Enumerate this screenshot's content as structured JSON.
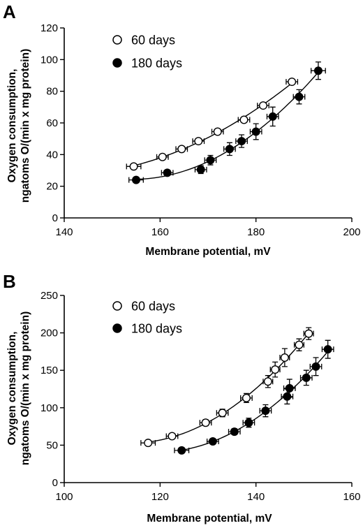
{
  "chart_data": [
    {
      "type": "scatter",
      "panel": "A",
      "xlabel": "Membrane potential, mV",
      "ylabel_lines": [
        "Oxygen consumption,",
        "ngatoms O/(min x mg protein)"
      ],
      "xlim": [
        140,
        200
      ],
      "ylim": [
        0,
        120
      ],
      "xticks": [
        140,
        160,
        180,
        200
      ],
      "yticks": [
        0,
        20,
        40,
        60,
        80,
        100,
        120
      ],
      "legend_position": "top-left",
      "series": [
        {
          "name": "60 days",
          "marker": "open-circle",
          "points": [
            {
              "x": 154.5,
              "y": 32.5,
              "xerr": 1.5,
              "yerr": 1.5
            },
            {
              "x": 160.5,
              "y": 38.5,
              "xerr": 1.2,
              "yerr": 1.5
            },
            {
              "x": 164.5,
              "y": 43.5,
              "xerr": 1.2,
              "yerr": 1.5
            },
            {
              "x": 168,
              "y": 48.5,
              "xerr": 1.2,
              "yerr": 1.5
            },
            {
              "x": 172,
              "y": 54.5,
              "xerr": 1.2,
              "yerr": 1.5
            },
            {
              "x": 177.5,
              "y": 62,
              "xerr": 1.2,
              "yerr": 1.5
            },
            {
              "x": 181.5,
              "y": 71,
              "xerr": 1.2,
              "yerr": 1.5
            },
            {
              "x": 187.5,
              "y": 86,
              "xerr": 1.2,
              "yerr": 1.5
            }
          ]
        },
        {
          "name": "180 days",
          "marker": "filled-circle",
          "points": [
            {
              "x": 155,
              "y": 24,
              "xerr": 1.5,
              "yerr": 1.5
            },
            {
              "x": 161.5,
              "y": 28.5,
              "xerr": 1.2,
              "yerr": 1.5
            },
            {
              "x": 168.5,
              "y": 30.5,
              "xerr": 1.2,
              "yerr": 2.5
            },
            {
              "x": 170.5,
              "y": 36.5,
              "xerr": 1.2,
              "yerr": 3
            },
            {
              "x": 174.5,
              "y": 43.5,
              "xerr": 1.2,
              "yerr": 4
            },
            {
              "x": 177,
              "y": 48.5,
              "xerr": 1.2,
              "yerr": 4
            },
            {
              "x": 180,
              "y": 54.5,
              "xerr": 1.2,
              "yerr": 5
            },
            {
              "x": 183.5,
              "y": 64,
              "xerr": 1.2,
              "yerr": 6
            },
            {
              "x": 189,
              "y": 76.5,
              "xerr": 1.2,
              "yerr": 4.5
            },
            {
              "x": 193,
              "y": 93,
              "xerr": 1.5,
              "yerr": 5.5
            }
          ]
        }
      ]
    },
    {
      "type": "scatter",
      "panel": "B",
      "xlabel": "Membrane potential, mV",
      "ylabel_lines": [
        "Oxygen consumption,",
        "ngatoms O/(min x mg protein)"
      ],
      "xlim": [
        100,
        160
      ],
      "ylim": [
        0,
        250
      ],
      "xticks": [
        100,
        120,
        140,
        160
      ],
      "yticks": [
        0,
        50,
        100,
        150,
        200,
        250
      ],
      "legend_position": "top-left",
      "series": [
        {
          "name": "60 days",
          "marker": "open-circle",
          "points": [
            {
              "x": 117.5,
              "y": 53,
              "xerr": 1.5,
              "yerr": 3
            },
            {
              "x": 122.5,
              "y": 62,
              "xerr": 1.2,
              "yerr": 3
            },
            {
              "x": 129.5,
              "y": 80,
              "xerr": 1.2,
              "yerr": 4
            },
            {
              "x": 133,
              "y": 93,
              "xerr": 1.2,
              "yerr": 5
            },
            {
              "x": 138,
              "y": 113,
              "xerr": 1.2,
              "yerr": 6
            },
            {
              "x": 142.5,
              "y": 135,
              "xerr": 1,
              "yerr": 8
            },
            {
              "x": 144,
              "y": 151,
              "xerr": 1,
              "yerr": 10
            },
            {
              "x": 146,
              "y": 167,
              "xerr": 1,
              "yerr": 12
            },
            {
              "x": 149,
              "y": 184,
              "xerr": 1,
              "yerr": 8
            },
            {
              "x": 151,
              "y": 199,
              "xerr": 1,
              "yerr": 8
            }
          ]
        },
        {
          "name": "180 days",
          "marker": "filled-circle",
          "points": [
            {
              "x": 124.5,
              "y": 43,
              "xerr": 1.5,
              "yerr": 3
            },
            {
              "x": 131,
              "y": 55,
              "xerr": 1.2,
              "yerr": 3
            },
            {
              "x": 135.5,
              "y": 68,
              "xerr": 1.2,
              "yerr": 4
            },
            {
              "x": 138.5,
              "y": 80,
              "xerr": 1.2,
              "yerr": 6
            },
            {
              "x": 142,
              "y": 96,
              "xerr": 1.2,
              "yerr": 8
            },
            {
              "x": 146.5,
              "y": 115,
              "xerr": 1.2,
              "yerr": 10
            },
            {
              "x": 147,
              "y": 126,
              "xerr": 1.2,
              "yerr": 12
            },
            {
              "x": 150.5,
              "y": 140,
              "xerr": 1.2,
              "yerr": 10
            },
            {
              "x": 152.5,
              "y": 155,
              "xerr": 1.2,
              "yerr": 12
            },
            {
              "x": 155,
              "y": 178,
              "xerr": 1.2,
              "yerr": 12
            }
          ]
        }
      ]
    }
  ]
}
